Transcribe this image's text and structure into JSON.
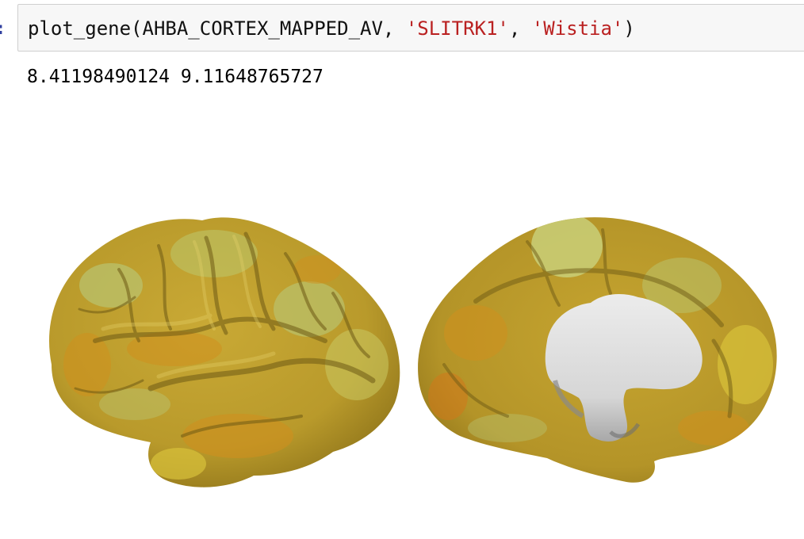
{
  "cell": {
    "prompt": ":",
    "code": {
      "fn": "plot_gene(AHBA_CORTEX_MAPPED_AV, ",
      "arg_gene": "'SLITRK1'",
      "sep": ", ",
      "arg_cmap": "'Wistia'",
      "close": ")"
    }
  },
  "output": {
    "text": "8.41198490124 9.11648765727"
  },
  "figure": {
    "views": [
      "lateral-hemisphere",
      "medial-hemisphere"
    ],
    "colormap": "Wistia",
    "colors": {
      "base_olive": "#b99a2b",
      "light_green": "#b9c26c",
      "orange": "#cf8f1e",
      "yellow": "#d8c23a",
      "shadow": "#6e5a14",
      "medial_wall": "#dcdcdc",
      "medial_shadow": "#8a8a8a"
    }
  }
}
